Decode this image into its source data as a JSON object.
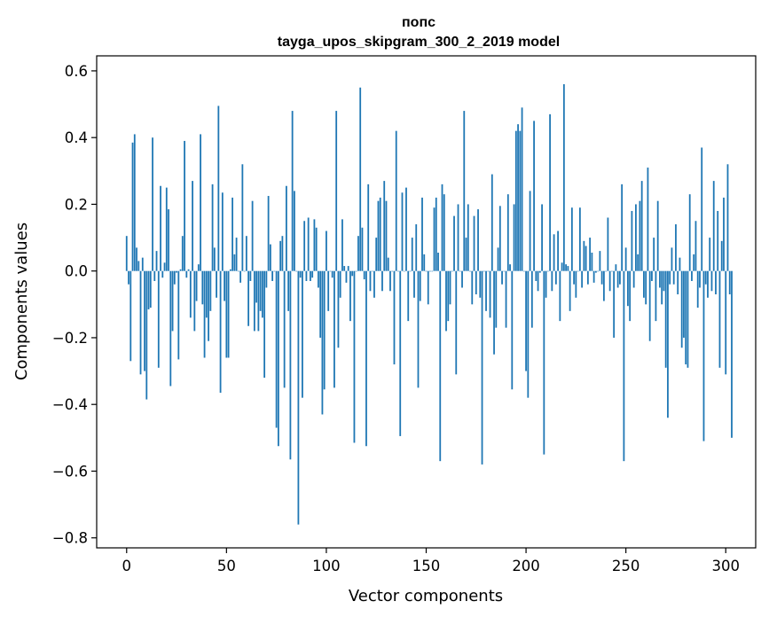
{
  "chart_data": {
    "type": "bar",
    "title": "попс",
    "subtitle": "tayga_upos_skipgram_300_2_2019 model",
    "xlabel": "Vector components",
    "ylabel": "Components values",
    "xlim": [
      -15,
      315
    ],
    "ylim": [
      -0.83,
      0.645
    ],
    "xticks": [
      0,
      50,
      100,
      150,
      200,
      250,
      300
    ],
    "yticks": [
      0.6,
      0.4,
      0.2,
      0.0,
      -0.2,
      -0.4,
      -0.6,
      -0.8
    ],
    "xtick_labels": [
      "0",
      "50",
      "100",
      "150",
      "200",
      "250",
      "300"
    ],
    "ytick_labels": [
      "0.6",
      "0.4",
      "0.2",
      "0.0",
      "−0.2",
      "−0.4",
      "−0.6",
      "−0.8"
    ],
    "bar_color": "#1f77b4",
    "grid": false,
    "values": [
      0.105,
      -0.04,
      -0.27,
      0.385,
      0.41,
      0.07,
      0.03,
      -0.31,
      0.04,
      -0.3,
      -0.385,
      -0.115,
      -0.11,
      0.4,
      -0.03,
      0.06,
      -0.29,
      0.255,
      -0.02,
      0.025,
      0.25,
      0.185,
      -0.345,
      -0.18,
      -0.04,
      -0.005,
      -0.265,
      0.005,
      0.105,
      0.39,
      -0.02,
      0.005,
      -0.14,
      0.27,
      -0.18,
      -0.09,
      0.02,
      0.41,
      -0.1,
      -0.26,
      -0.14,
      -0.21,
      -0.12,
      0.26,
      0.07,
      -0.08,
      0.495,
      -0.365,
      0.235,
      -0.09,
      -0.26,
      -0.26,
      0.005,
      0.22,
      0.05,
      0.1,
      0.0,
      -0.035,
      0.32,
      0.0,
      0.105,
      -0.165,
      -0.03,
      0.21,
      -0.18,
      -0.095,
      -0.18,
      -0.12,
      -0.14,
      -0.32,
      -0.05,
      0.225,
      0.08,
      -0.03,
      0.0,
      -0.47,
      -0.525,
      0.09,
      0.105,
      -0.35,
      0.255,
      -0.12,
      -0.565,
      0.48,
      0.24,
      0.0,
      -0.76,
      -0.02,
      -0.38,
      0.15,
      -0.03,
      0.16,
      -0.03,
      -0.02,
      0.155,
      0.13,
      -0.05,
      -0.2,
      -0.43,
      -0.355,
      0.12,
      -0.12,
      0.0,
      -0.02,
      -0.35,
      0.48,
      -0.23,
      -0.08,
      0.155,
      0.015,
      -0.035,
      0.015,
      -0.15,
      -0.015,
      -0.515,
      0.0,
      0.105,
      0.55,
      0.13,
      -0.025,
      -0.525,
      0.26,
      -0.06,
      0.0,
      -0.08,
      0.1,
      0.21,
      0.22,
      -0.06,
      0.27,
      0.21,
      0.04,
      -0.06,
      0.0,
      -0.28,
      0.42,
      0.0,
      -0.495,
      0.235,
      0.0,
      0.25,
      -0.15,
      0.0,
      0.1,
      -0.08,
      0.14,
      -0.35,
      -0.09,
      0.22,
      0.05,
      0.0,
      -0.1,
      0.0,
      0.0,
      0.19,
      0.22,
      0.055,
      -0.57,
      0.26,
      0.23,
      -0.18,
      -0.15,
      -0.1,
      0.0,
      0.165,
      -0.31,
      0.2,
      0.0,
      -0.05,
      0.48,
      0.1,
      0.2,
      0.0,
      -0.1,
      0.165,
      -0.07,
      0.185,
      -0.08,
      -0.58,
      0.0,
      -0.12,
      0.0,
      -0.14,
      0.29,
      -0.25,
      -0.17,
      0.07,
      0.195,
      -0.04,
      0.0,
      -0.17,
      0.23,
      0.02,
      -0.355,
      0.2,
      0.42,
      0.44,
      0.42,
      0.49,
      0.0,
      -0.3,
      -0.38,
      0.24,
      -0.17,
      0.45,
      -0.03,
      -0.06,
      -0.005,
      0.2,
      -0.55,
      -0.08,
      0.0,
      0.47,
      -0.06,
      0.11,
      -0.04,
      0.12,
      -0.15,
      0.025,
      0.56,
      0.02,
      0.015,
      -0.12,
      0.19,
      -0.04,
      -0.08,
      0.0,
      0.19,
      -0.05,
      0.09,
      0.075,
      -0.04,
      0.1,
      0.055,
      -0.035,
      -0.005,
      0.0,
      0.06,
      -0.04,
      -0.09,
      0.0,
      0.16,
      -0.06,
      0.0,
      -0.2,
      0.02,
      -0.05,
      -0.04,
      0.26,
      -0.57,
      0.07,
      -0.105,
      -0.15,
      0.18,
      -0.05,
      0.2,
      0.05,
      0.21,
      0.27,
      -0.08,
      -0.1,
      0.31,
      -0.21,
      -0.03,
      0.1,
      -0.15,
      0.21,
      -0.05,
      -0.1,
      -0.06,
      -0.29,
      -0.44,
      -0.04,
      0.07,
      -0.04,
      0.14,
      -0.07,
      0.04,
      -0.23,
      -0.2,
      -0.28,
      -0.29,
      0.23,
      -0.03,
      0.05,
      0.15,
      -0.11,
      -0.05,
      0.37,
      -0.51,
      -0.04,
      -0.08,
      0.1,
      -0.06,
      0.27,
      -0.07,
      0.18,
      -0.29,
      0.09,
      0.22,
      -0.31,
      0.32,
      -0.07,
      -0.5
    ]
  }
}
